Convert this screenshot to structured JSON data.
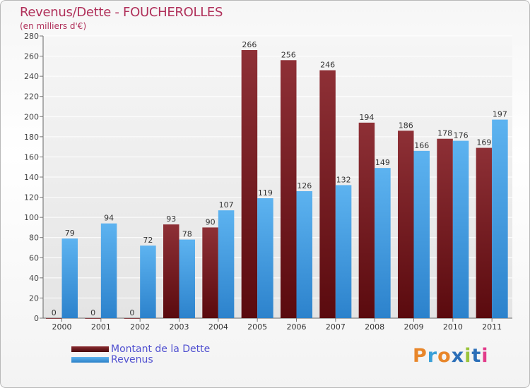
{
  "chart_data": {
    "type": "bar",
    "title": "Revenus/Dette - FOUCHEROLLES",
    "subtitle": "(en milliers d'€)",
    "categories": [
      "2000",
      "2001",
      "2002",
      "2003",
      "2004",
      "2005",
      "2006",
      "2007",
      "2008",
      "2009",
      "2010",
      "2011"
    ],
    "series": [
      {
        "name": "Montant de la Dette",
        "color": "#7a1f24",
        "values": [
          0,
          0,
          0,
          93,
          90,
          266,
          256,
          246,
          194,
          186,
          178,
          169
        ]
      },
      {
        "name": "Revenus",
        "color": "#3b9be0",
        "values": [
          79,
          94,
          72,
          78,
          107,
          119,
          126,
          132,
          149,
          166,
          176,
          197
        ]
      }
    ],
    "ylim": [
      0,
      280
    ],
    "yticks": [
      0,
      20,
      40,
      60,
      80,
      100,
      120,
      140,
      160,
      180,
      200,
      220,
      240,
      260,
      280
    ],
    "grid": true,
    "legend_position": "bottom-left"
  },
  "logo": {
    "text": "Proxiti",
    "colors": [
      "#e8862a",
      "#3aa0d8",
      "#e8862a",
      "#2c6fb8",
      "#9bc43c",
      "#2c6fb8",
      "#e23c8a"
    ]
  }
}
